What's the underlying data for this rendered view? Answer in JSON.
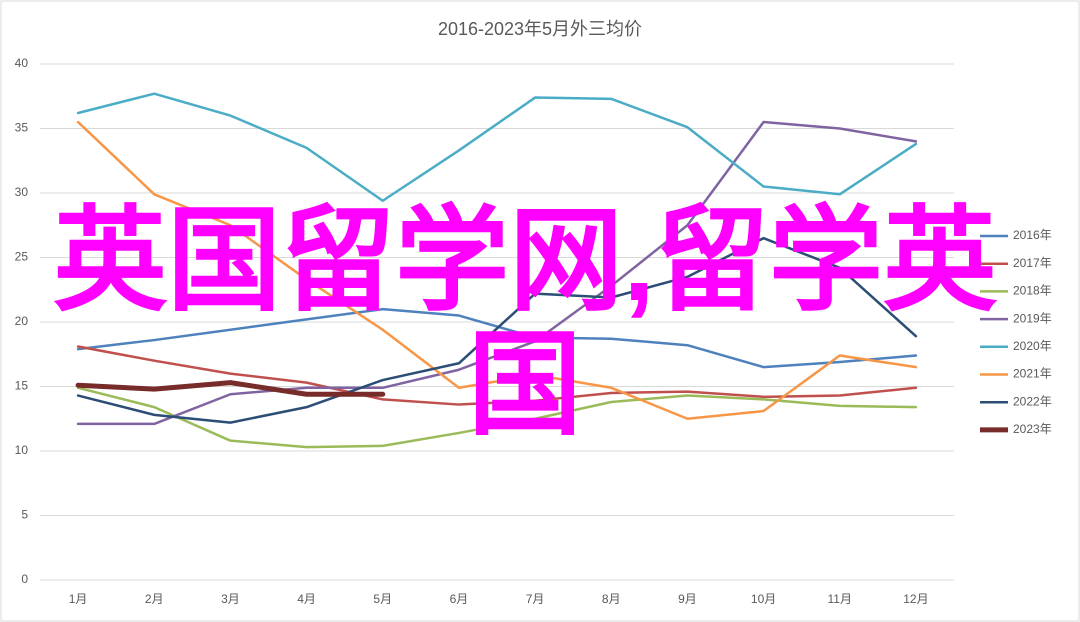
{
  "chart_data": {
    "type": "line",
    "title": "2016-2023年5月外三均价",
    "annotation": "英国留学网,留学英国",
    "categories": [
      "1月",
      "2月",
      "3月",
      "4月",
      "5月",
      "6月",
      "7月",
      "8月",
      "9月",
      "10月",
      "11月",
      "12月"
    ],
    "ylim": [
      0,
      40
    ],
    "yticks": [
      0,
      5,
      10,
      15,
      20,
      25,
      30,
      35,
      40
    ],
    "grid": true,
    "legend": "right",
    "series": [
      {
        "name": "2016年",
        "color": "#4f81bd",
        "values": [
          17.9,
          18.6,
          19.4,
          20.2,
          21.0,
          20.5,
          18.8,
          18.7,
          18.2,
          16.5,
          16.9,
          17.4
        ]
      },
      {
        "name": "2017年",
        "color": "#c0504d",
        "values": [
          18.1,
          17.0,
          16.0,
          15.3,
          14.0,
          13.6,
          13.9,
          14.5,
          14.6,
          14.2,
          14.3,
          14.9
        ]
      },
      {
        "name": "2018年",
        "color": "#9bbb59",
        "values": [
          14.9,
          13.4,
          10.8,
          10.3,
          10.4,
          11.4,
          12.5,
          13.8,
          14.3,
          14.0,
          13.5,
          13.4
        ]
      },
      {
        "name": "2019年",
        "color": "#8064a2",
        "values": [
          12.1,
          12.1,
          14.4,
          14.9,
          14.9,
          16.3,
          18.5,
          22.8,
          27.5,
          35.5,
          35.0,
          34.0
        ]
      },
      {
        "name": "2020年",
        "color": "#4bacc6",
        "values": [
          36.2,
          37.7,
          36.0,
          33.5,
          29.4,
          33.3,
          37.4,
          37.3,
          35.1,
          30.5,
          29.9,
          33.8
        ]
      },
      {
        "name": "2021年",
        "color": "#f79646",
        "values": [
          35.5,
          29.9,
          27.5,
          23.3,
          19.4,
          14.9,
          15.9,
          14.9,
          12.5,
          13.1,
          17.4,
          16.5
        ]
      },
      {
        "name": "2022年",
        "color": "#2c4d75",
        "values": [
          14.3,
          12.8,
          12.2,
          13.4,
          15.5,
          16.8,
          22.2,
          21.9,
          23.5,
          26.5,
          24.2,
          18.9
        ]
      },
      {
        "name": "2023年",
        "color": "#772c2a",
        "values": [
          15.1,
          14.8,
          15.3,
          14.4,
          14.4,
          null,
          null,
          null,
          null,
          null,
          null,
          null
        ]
      }
    ]
  }
}
